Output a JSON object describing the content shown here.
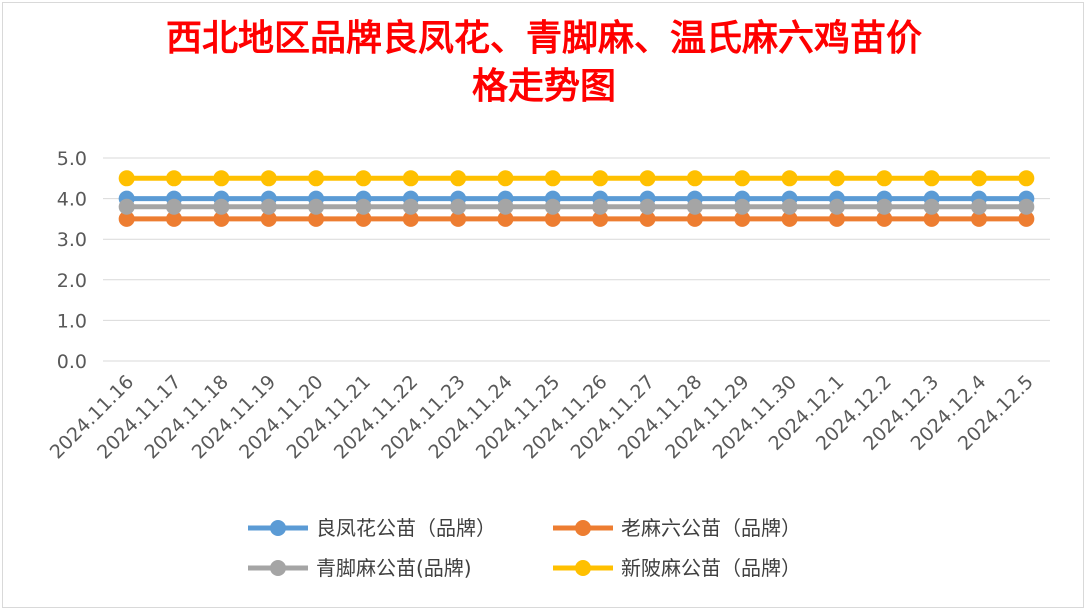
{
  "chart_data": {
    "type": "line",
    "title_line1": "西北地区品牌良凤花、青脚麻、温氏麻六鸡苗价",
    "title_line2": "格走势图",
    "categories": [
      "2024.11.16",
      "2024.11.17",
      "2024.11.18",
      "2024.11.19",
      "2024.11.20",
      "2024.11.21",
      "2024.11.22",
      "2024.11.23",
      "2024.11.24",
      "2024.11.25",
      "2024.11.26",
      "2024.11.27",
      "2024.11.28",
      "2024.11.29",
      "2024.11.30",
      "2024.12.1",
      "2024.12.2",
      "2024.12.3",
      "2024.12.4",
      "2024.12.5"
    ],
    "y_ticks": [
      "0.0",
      "1.0",
      "2.0",
      "3.0",
      "4.0",
      "5.0"
    ],
    "ylim": [
      0,
      5
    ],
    "grid": true,
    "legend_position": "bottom",
    "series": [
      {
        "name": "良凤花公苗（品牌）",
        "color": "#5b9bd5",
        "values": [
          4.0,
          4.0,
          4.0,
          4.0,
          4.0,
          4.0,
          4.0,
          4.0,
          4.0,
          4.0,
          4.0,
          4.0,
          4.0,
          4.0,
          4.0,
          4.0,
          4.0,
          4.0,
          4.0,
          4.0
        ]
      },
      {
        "name": "老麻六公苗（品牌）",
        "color": "#ed7d31",
        "values": [
          3.5,
          3.5,
          3.5,
          3.5,
          3.5,
          3.5,
          3.5,
          3.5,
          3.5,
          3.5,
          3.5,
          3.5,
          3.5,
          3.5,
          3.5,
          3.5,
          3.5,
          3.5,
          3.5,
          3.5
        ]
      },
      {
        "name": "青脚麻公苗(品牌)",
        "color": "#a5a5a5",
        "values": [
          3.8,
          3.8,
          3.8,
          3.8,
          3.8,
          3.8,
          3.8,
          3.8,
          3.8,
          3.8,
          3.8,
          3.8,
          3.8,
          3.8,
          3.8,
          3.8,
          3.8,
          3.8,
          3.8,
          3.8
        ]
      },
      {
        "name": "新陂麻公苗（品牌）",
        "color": "#ffc000",
        "values": [
          4.5,
          4.5,
          4.5,
          4.5,
          4.5,
          4.5,
          4.5,
          4.5,
          4.5,
          4.5,
          4.5,
          4.5,
          4.5,
          4.5,
          4.5,
          4.5,
          4.5,
          4.5,
          4.5,
          4.5
        ]
      }
    ]
  }
}
